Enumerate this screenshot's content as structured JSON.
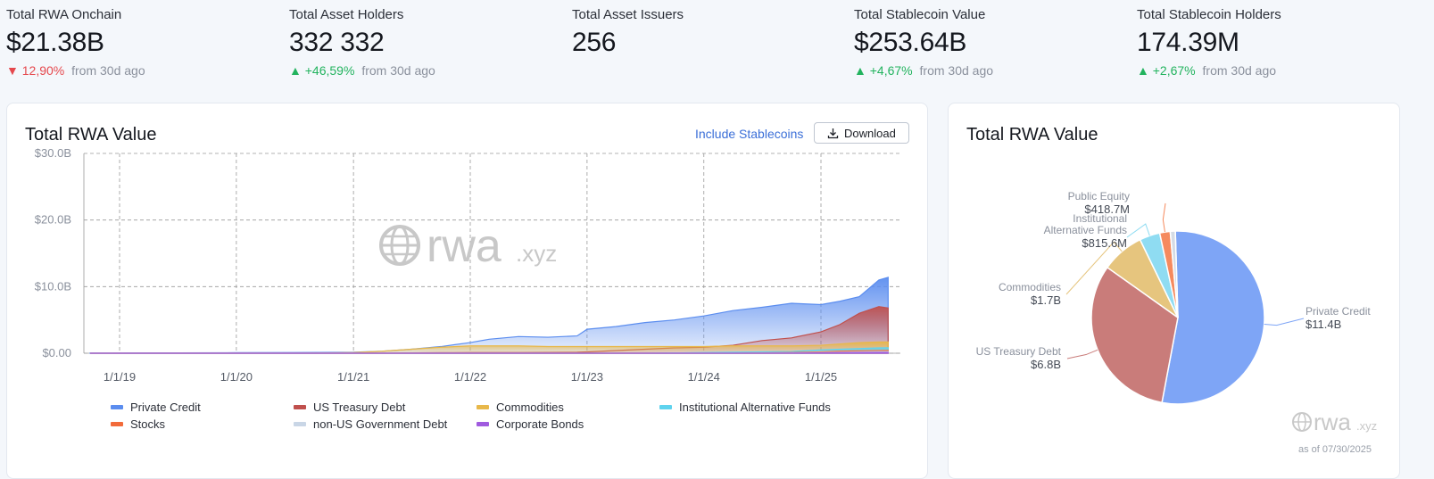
{
  "stats": [
    {
      "label": "Total RWA Onchain",
      "value": "$21.38B",
      "arrow": "▼",
      "change": "12,90%",
      "direction": "down",
      "suffix": "from 30d ago"
    },
    {
      "label": "Total Asset Holders",
      "value": "332 332",
      "arrow": "▲",
      "change": "+46,59%",
      "direction": "up",
      "suffix": "from 30d ago"
    },
    {
      "label": "Total Asset Issuers",
      "value": "256",
      "arrow": "",
      "change": "",
      "direction": "",
      "suffix": ""
    },
    {
      "label": "Total Stablecoin Value",
      "value": "$253.64B",
      "arrow": "▲",
      "change": "+4,67%",
      "direction": "up",
      "suffix": "from 30d ago"
    },
    {
      "label": "Total Stablecoin Holders",
      "value": "174.39M",
      "arrow": "▲",
      "change": "+2,67%",
      "direction": "up",
      "suffix": "from 30d ago"
    }
  ],
  "area_card": {
    "title": "Total RWA Value",
    "include_label": "Include Stablecoins",
    "download_label": "Download",
    "watermark": "rwa",
    "watermark_suffix": ".xyz"
  },
  "pie_card": {
    "title": "Total RWA Value",
    "watermark": "rwa",
    "watermark_suffix": ".xyz",
    "as_of": "as of 07/30/2025"
  },
  "colors": {
    "private_credit": "#5b8def",
    "us_treasury": "#c0504d",
    "commodities": "#e8b84a",
    "inst_alt_funds": "#5fd3ee",
    "stocks": "#f26b3a",
    "non_us_gov": "#c9d6e6",
    "corporate_bonds": "#a05bdf"
  },
  "chart_data": [
    {
      "type": "area",
      "title": "Total RWA Value",
      "x_ticks": [
        "1/1/19",
        "1/1/20",
        "1/1/21",
        "1/1/22",
        "1/1/23",
        "1/1/24",
        "1/1/25"
      ],
      "y_ticks": [
        "$0.00",
        "$10.0B",
        "$20.0B",
        "$30.0B"
      ],
      "ylim": [
        0,
        30
      ],
      "y_unit": "$B",
      "grid": true,
      "legend_position": "bottom",
      "x": [
        "2018-10-01",
        "2019-01-01",
        "2019-07-01",
        "2020-01-01",
        "2020-07-01",
        "2021-01-01",
        "2021-04-01",
        "2021-07-01",
        "2021-10-01",
        "2022-01-01",
        "2022-03-01",
        "2022-06-01",
        "2022-09-01",
        "2022-12-01",
        "2023-01-01",
        "2023-04-01",
        "2023-07-01",
        "2023-10-01",
        "2024-01-01",
        "2024-04-01",
        "2024-07-01",
        "2024-10-01",
        "2025-01-01",
        "2025-03-01",
        "2025-05-01",
        "2025-07-01",
        "2025-07-30"
      ],
      "series": [
        {
          "name": "Private Credit",
          "color": "#5b8def",
          "values": [
            0.02,
            0.03,
            0.05,
            0.08,
            0.1,
            0.15,
            0.3,
            0.6,
            1.0,
            1.6,
            2.1,
            2.5,
            2.4,
            2.6,
            3.6,
            4.0,
            4.6,
            5.0,
            5.6,
            6.4,
            6.9,
            7.5,
            7.3,
            7.8,
            8.5,
            11.0,
            11.4
          ]
        },
        {
          "name": "US Treasury Debt",
          "color": "#c0504d",
          "values": [
            0,
            0,
            0,
            0,
            0,
            0,
            0.02,
            0.05,
            0.08,
            0.1,
            0.1,
            0.1,
            0.12,
            0.15,
            0.2,
            0.4,
            0.6,
            0.8,
            0.9,
            1.2,
            1.9,
            2.3,
            3.2,
            4.3,
            6.0,
            7.0,
            6.8
          ]
        },
        {
          "name": "Commodities",
          "color": "#e8b84a",
          "values": [
            0,
            0,
            0,
            0,
            0,
            0.1,
            0.3,
            0.6,
            0.9,
            1.1,
            1.1,
            1.1,
            1.0,
            1.0,
            1.0,
            1.0,
            1.0,
            1.0,
            1.0,
            1.1,
            1.1,
            1.1,
            1.2,
            1.4,
            1.6,
            1.7,
            1.7
          ]
        },
        {
          "name": "Institutional Alternative Funds",
          "color": "#5fd3ee",
          "values": [
            0,
            0,
            0,
            0,
            0,
            0,
            0,
            0,
            0,
            0,
            0,
            0,
            0,
            0,
            0,
            0,
            0,
            0.05,
            0.1,
            0.15,
            0.2,
            0.25,
            0.5,
            0.6,
            0.7,
            0.8,
            0.82
          ]
        },
        {
          "name": "Stocks",
          "color": "#f26b3a",
          "values": [
            0,
            0,
            0,
            0,
            0,
            0,
            0,
            0,
            0,
            0,
            0,
            0,
            0,
            0,
            0,
            0,
            0,
            0,
            0,
            0,
            0.05,
            0.1,
            0.2,
            0.3,
            0.35,
            0.4,
            0.42
          ]
        },
        {
          "name": "non-US Government Debt",
          "color": "#c9d6e6",
          "values": [
            0,
            0,
            0,
            0,
            0,
            0,
            0,
            0,
            0,
            0,
            0,
            0,
            0,
            0,
            0,
            0,
            0,
            0,
            0,
            0,
            0.02,
            0.04,
            0.1,
            0.15,
            0.2,
            0.25,
            0.25
          ]
        },
        {
          "name": "Corporate Bonds",
          "color": "#a05bdf",
          "values": [
            0,
            0,
            0,
            0,
            0,
            0,
            0,
            0,
            0,
            0,
            0,
            0,
            0,
            0,
            0,
            0,
            0,
            0,
            0,
            0,
            0,
            0.02,
            0.05,
            0.08,
            0.1,
            0.12,
            0.12
          ]
        }
      ]
    },
    {
      "type": "pie",
      "title": "Total RWA Value",
      "slices": [
        {
          "name": "Private Credit",
          "label": "Private Credit",
          "value_label": "$11.4B",
          "value": 11.4,
          "color": "#7ea5f6"
        },
        {
          "name": "US Treasury Debt",
          "label": "US Treasury Debt",
          "value_label": "$6.8B",
          "value": 6.8,
          "color": "#c97c7a"
        },
        {
          "name": "Commodities",
          "label": "Commodities",
          "value_label": "$1.7B",
          "value": 1.7,
          "color": "#e6c57e"
        },
        {
          "name": "Institutional Alternative Funds",
          "label": "Institutional\nAlternative Funds",
          "value_label": "$815.6M",
          "value": 0.8156,
          "color": "#8fdcf2"
        },
        {
          "name": "Public Equity",
          "label": "Public Equity",
          "value_label": "$418.7M",
          "value": 0.4187,
          "color": "#f58a5e"
        },
        {
          "name": "Other",
          "label": "",
          "value_label": "",
          "value": 0.2,
          "color": "#d4dbe5"
        }
      ]
    }
  ]
}
